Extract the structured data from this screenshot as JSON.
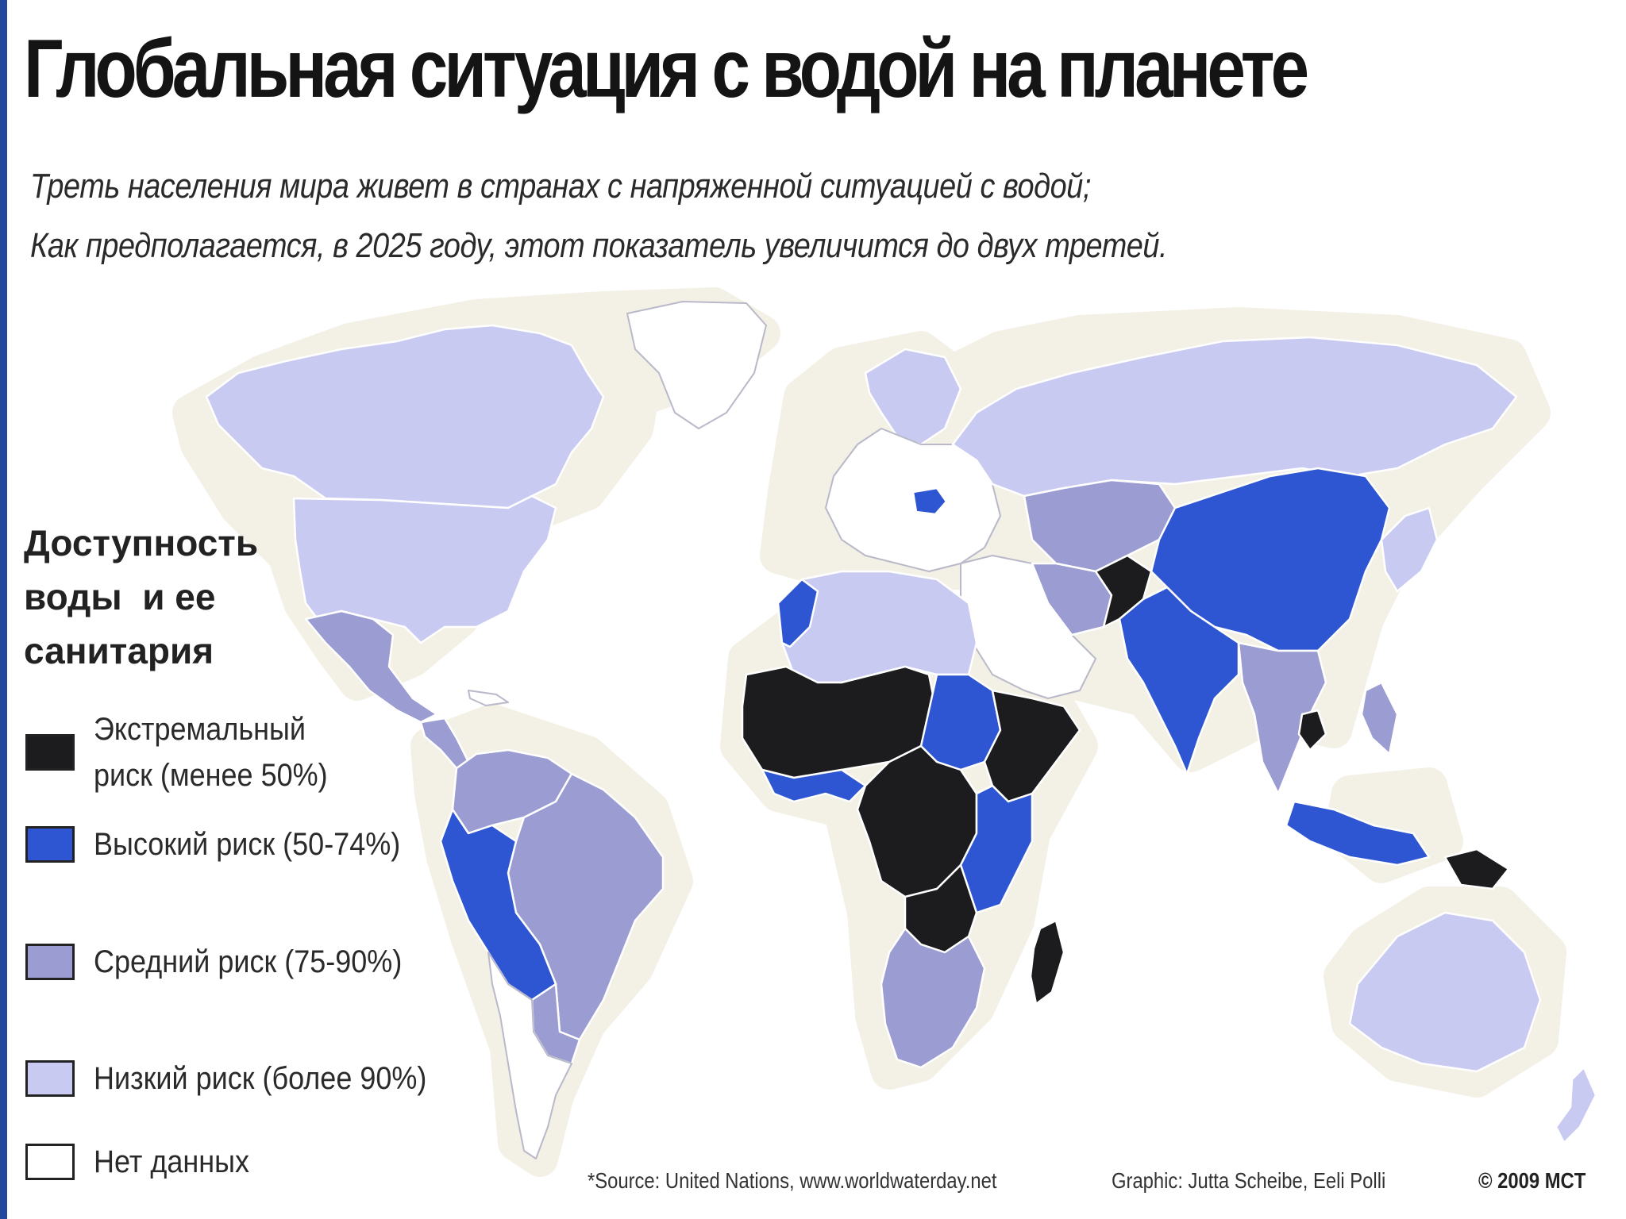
{
  "title": "Глобальная ситуация с водой на планете",
  "subtitle_line1": "Треть населения мира живет в странах с напряженной ситуацией с водой;",
  "subtitle_line2": "Как предполагается, в 2025 году, этот показатель увеличится до двух третей.",
  "legend": {
    "title_lines": [
      "Доступность",
      "воды  и ее",
      "санитария"
    ],
    "items": [
      {
        "label": "Экстремальный риск (менее 50%)",
        "color": "#1c1c1f"
      },
      {
        "label": "Высокий риск (50-74%)",
        "color": "#2f56d2"
      },
      {
        "label": "Средний риск (75-90%)",
        "color": "#9a9cd2"
      },
      {
        "label": "Низкий риск (более 90%)",
        "color": "#c9caf1"
      },
      {
        "label": "Нет данных",
        "color": "#ffffff"
      }
    ]
  },
  "footer": {
    "source": "*Source: United Nations, www.worldwaterday.net",
    "graphic": "Graphic: Jutta Scheibe, Eeli Polli",
    "copyright": "© 2009 MCT"
  },
  "colors": {
    "extreme": "#1c1c1f",
    "high": "#2f56d2",
    "medium": "#9a9cd2",
    "low": "#c9caf1",
    "none": "#ffffff",
    "map_halo": "#f3f0e6",
    "border": "#ffffff",
    "accent_bar": "#23479d"
  },
  "regions": [
    {
      "name": "greenland",
      "risk": "none"
    },
    {
      "name": "canada",
      "risk": "low"
    },
    {
      "name": "usa",
      "risk": "low"
    },
    {
      "name": "mexico",
      "risk": "medium"
    },
    {
      "name": "central-america",
      "risk": "medium"
    },
    {
      "name": "caribbean",
      "risk": "none"
    },
    {
      "name": "colombia-venezuela-guianas",
      "risk": "medium"
    },
    {
      "name": "peru-bolivia",
      "risk": "high"
    },
    {
      "name": "brazil",
      "risk": "medium"
    },
    {
      "name": "chile-argentina",
      "risk": "none"
    },
    {
      "name": "paraguay-uruguay",
      "risk": "medium"
    },
    {
      "name": "europe",
      "risk": "none"
    },
    {
      "name": "scandinavia",
      "risk": "low"
    },
    {
      "name": "romania",
      "risk": "high"
    },
    {
      "name": "russia",
      "risk": "low"
    },
    {
      "name": "kazakhstan-central-asia",
      "risk": "medium"
    },
    {
      "name": "middle-east",
      "risk": "none"
    },
    {
      "name": "iran",
      "risk": "medium"
    },
    {
      "name": "afghanistan",
      "risk": "extreme"
    },
    {
      "name": "pakistan-india-nepal",
      "risk": "high"
    },
    {
      "name": "china-mongolia",
      "risk": "high"
    },
    {
      "name": "korea-japan",
      "risk": "low"
    },
    {
      "name": "myanmar-thailand-vietnam",
      "risk": "medium"
    },
    {
      "name": "cambodia",
      "risk": "extreme"
    },
    {
      "name": "indonesia",
      "risk": "high"
    },
    {
      "name": "papua-new-guinea",
      "risk": "extreme"
    },
    {
      "name": "philippines",
      "risk": "medium"
    },
    {
      "name": "australia",
      "risk": "low"
    },
    {
      "name": "new-zealand",
      "risk": "low"
    },
    {
      "name": "north-africa",
      "risk": "low"
    },
    {
      "name": "morocco",
      "risk": "high"
    },
    {
      "name": "sahel-west-africa",
      "risk": "extreme"
    },
    {
      "name": "west-africa-coast",
      "risk": "high"
    },
    {
      "name": "sudan",
      "risk": "high"
    },
    {
      "name": "horn-of-africa",
      "risk": "extreme"
    },
    {
      "name": "central-africa",
      "risk": "extreme"
    },
    {
      "name": "east-africa",
      "risk": "high"
    },
    {
      "name": "southern-africa-north",
      "risk": "extreme"
    },
    {
      "name": "southern-africa",
      "risk": "medium"
    },
    {
      "name": "madagascar",
      "risk": "extreme"
    }
  ]
}
